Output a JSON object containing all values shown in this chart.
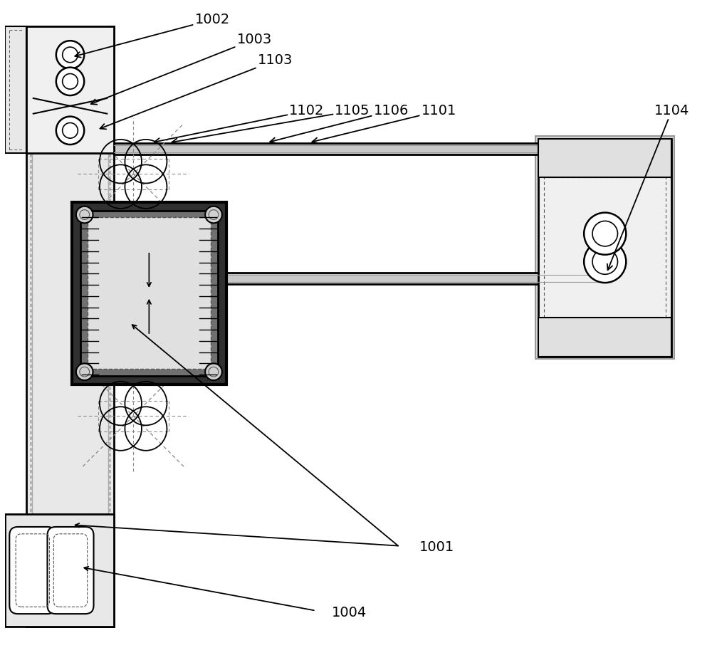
{
  "bg_color": "#ffffff",
  "figsize": [
    10.0,
    9.41
  ],
  "dpi": 100,
  "lw_heavy": 2.0,
  "lw_med": 1.5,
  "lw_light": 1.0,
  "lw_thin": 0.8,
  "colors": {
    "black": "#000000",
    "dark_gray": "#333333",
    "mid_gray": "#888888",
    "light_gray": "#cccccc",
    "bg_gray": "#e8e8e8",
    "white": "#ffffff",
    "green_line": "#5a9a5a",
    "purple_line": "#9a5a9a"
  }
}
